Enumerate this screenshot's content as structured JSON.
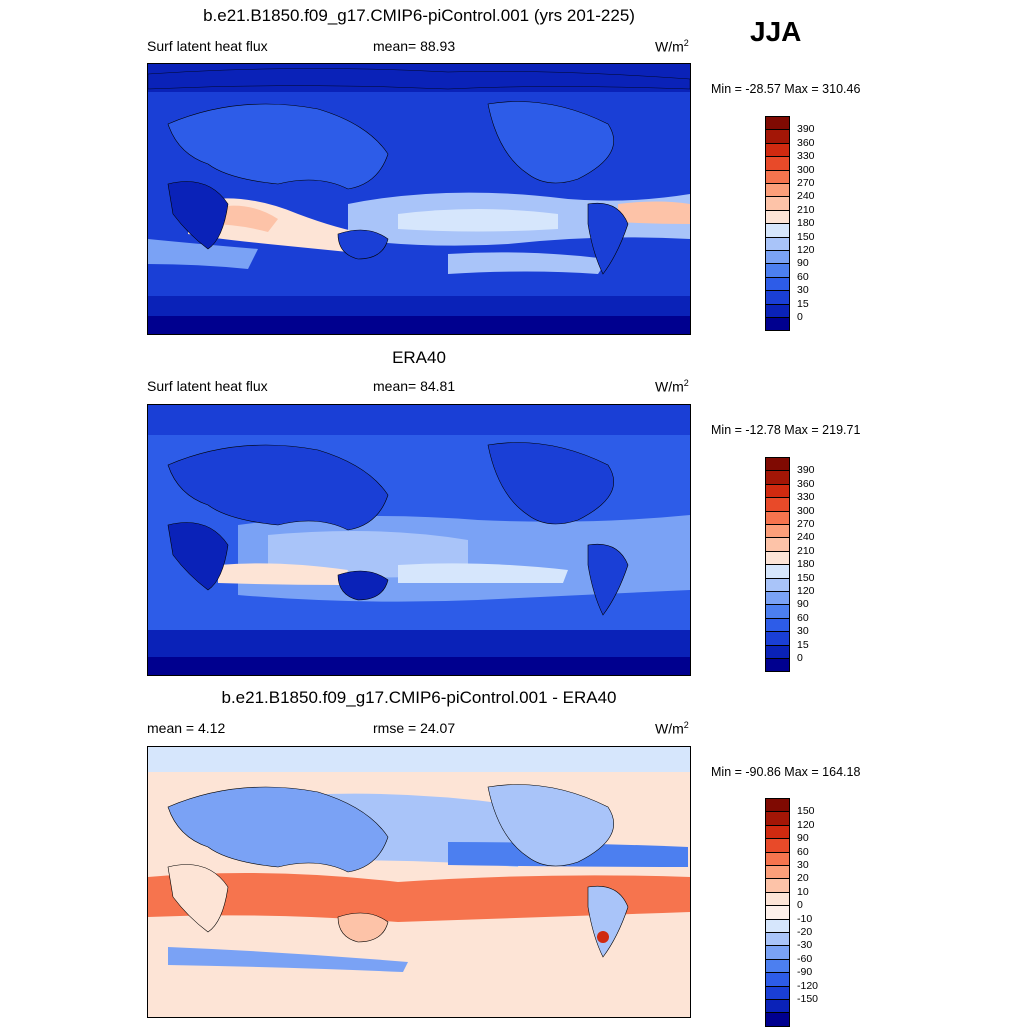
{
  "season": "JJA",
  "panels": [
    {
      "title": "b.e21.B1850.f09_g17.CMIP6-piControl.001 (yrs 201-225)",
      "left_label": "Surf latent heat flux",
      "mid_label": "mean=  88.93",
      "units": "W/m",
      "units_sup": "2",
      "minmax": "Min = -28.57 Max = 310.46",
      "colorbar": {
        "colors": [
          "#00008f",
          "#0a22b8",
          "#1a3fd6",
          "#2d5ce8",
          "#4c7ff0",
          "#7aa2f5",
          "#a9c4f9",
          "#d6e6fc",
          "#fde4d6",
          "#fdc3a8",
          "#fc9f7a",
          "#f6744e",
          "#e84a29",
          "#d02a10",
          "#a31606",
          "#7f0a02"
        ],
        "labels": [
          "0",
          "15",
          "30",
          "60",
          "90",
          "120",
          "150",
          "180",
          "210",
          "240",
          "270",
          "300",
          "330",
          "360",
          "390"
        ]
      }
    },
    {
      "title": "ERA40",
      "left_label": "Surf latent heat flux",
      "mid_label": "mean=  84.81",
      "units": "W/m",
      "units_sup": "2",
      "minmax": "Min = -12.78 Max = 219.71",
      "colorbar": {
        "colors": [
          "#00008f",
          "#0a22b8",
          "#1a3fd6",
          "#2d5ce8",
          "#4c7ff0",
          "#7aa2f5",
          "#a9c4f9",
          "#d6e6fc",
          "#fde4d6",
          "#fdc3a8",
          "#fc9f7a",
          "#f6744e",
          "#e84a29",
          "#d02a10",
          "#a31606",
          "#7f0a02"
        ],
        "labels": [
          "0",
          "15",
          "30",
          "60",
          "90",
          "120",
          "150",
          "180",
          "210",
          "240",
          "270",
          "300",
          "330",
          "360",
          "390"
        ]
      }
    },
    {
      "title": "b.e21.B1850.f09_g17.CMIP6-piControl.001 - ERA40",
      "left_label": "mean =   4.12",
      "mid_label": "rmse =  24.07",
      "units": "W/m",
      "units_sup": "2",
      "minmax": "Min = -90.86 Max = 164.18",
      "colorbar": {
        "colors": [
          "#00008f",
          "#0a22b8",
          "#1a3fd6",
          "#2d5ce8",
          "#4c7ff0",
          "#7aa2f5",
          "#a9c4f9",
          "#d6e6fc",
          "#fdf0ea",
          "#fde4d6",
          "#fdc3a8",
          "#fc9f7a",
          "#f6744e",
          "#e84a29",
          "#d02a10",
          "#a31606",
          "#7f0a02"
        ],
        "labels": [
          "-150",
          "-120",
          "-90",
          "-60",
          "-30",
          "-20",
          "-10",
          "0",
          "10",
          "20",
          "30",
          "60",
          "90",
          "120",
          "150"
        ]
      }
    }
  ],
  "colors": {
    "ocean_low": "#0a22b8",
    "ocean_mid": "#2d5ce8",
    "light_blue": "#a9c4f9",
    "pale": "#fde4d6",
    "warm": "#f6744e",
    "diff_bg": "#fde4d6"
  }
}
